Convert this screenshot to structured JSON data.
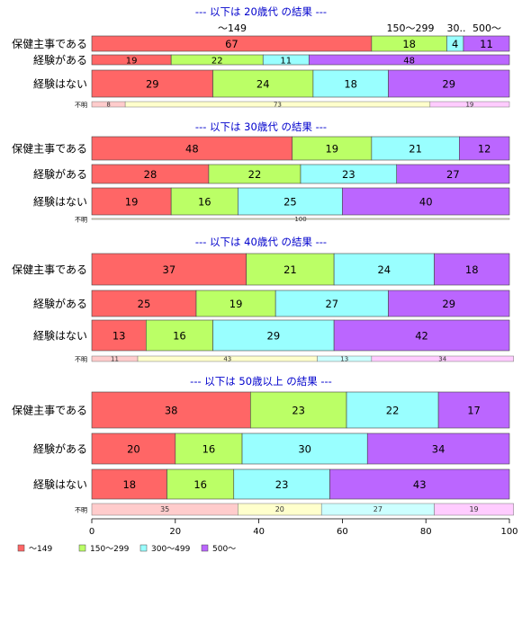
{
  "chart_data": {
    "type": "bar",
    "orientation": "horizontal-stacked-percent",
    "legend": {
      "position": "bottom-left",
      "entries": [
        "～149",
        "150～299",
        "300～499",
        "500～"
      ]
    },
    "colors": {
      "series": [
        "#ff6666",
        "#bbff66",
        "#99ffff",
        "#bb66ff"
      ],
      "minor_series": [
        "#ffcccc",
        "#ffffcc",
        "#ccffff",
        "#ffccff"
      ],
      "title_color": "#0000cc"
    },
    "x_axis": {
      "ticks": [
        "0",
        "20",
        "40",
        "60",
        "80",
        "100"
      ],
      "xlim": [
        0,
        100
      ]
    },
    "panels": [
      {
        "title": "--- 以下は 20歳代 の結果 ---",
        "header_labels": [
          "～149",
          "150～299",
          "30..",
          "500～"
        ],
        "rows": [
          {
            "label": "保健主事である",
            "values": [
              67,
              18,
              4,
              11
            ]
          },
          {
            "label": "経験がある",
            "values": [
              19,
              22,
              11,
              48
            ],
            "thin": true
          },
          {
            "label": "経験はない",
            "values": [
              29,
              24,
              18,
              29
            ]
          }
        ],
        "minor": {
          "label": "不明",
          "values": [
            8,
            73,
            0,
            19
          ]
        }
      },
      {
        "title": "--- 以下は 30歳代 の結果 ---",
        "rows": [
          {
            "label": "保健主事である",
            "values": [
              48,
              19,
              21,
              12
            ]
          },
          {
            "label": "経験がある",
            "values": [
              28,
              22,
              23,
              27
            ]
          },
          {
            "label": "経験はない",
            "values": [
              19,
              16,
              25,
              40
            ]
          }
        ],
        "minor": {
          "label": "不明",
          "values": [
            0,
            100,
            0,
            0
          ]
        }
      },
      {
        "title": "--- 以下は 40歳代 の結果 ---",
        "rows": [
          {
            "label": "保健主事である",
            "values": [
              37,
              21,
              24,
              18
            ]
          },
          {
            "label": "経験がある",
            "values": [
              25,
              19,
              27,
              29
            ]
          },
          {
            "label": "経験はない",
            "values": [
              13,
              16,
              29,
              42
            ]
          }
        ],
        "minor": {
          "label": "不明",
          "values": [
            11,
            43,
            13,
            34
          ]
        }
      },
      {
        "title": "--- 以下は 50歳以上 の結果 ---",
        "rows": [
          {
            "label": "保健主事である",
            "values": [
              38,
              23,
              22,
              17
            ]
          },
          {
            "label": "経験がある",
            "values": [
              20,
              16,
              30,
              34
            ]
          },
          {
            "label": "経験はない",
            "values": [
              18,
              16,
              23,
              43
            ]
          }
        ],
        "minor": {
          "label": "不明",
          "values": [
            35,
            20,
            27,
            19
          ]
        }
      }
    ]
  }
}
